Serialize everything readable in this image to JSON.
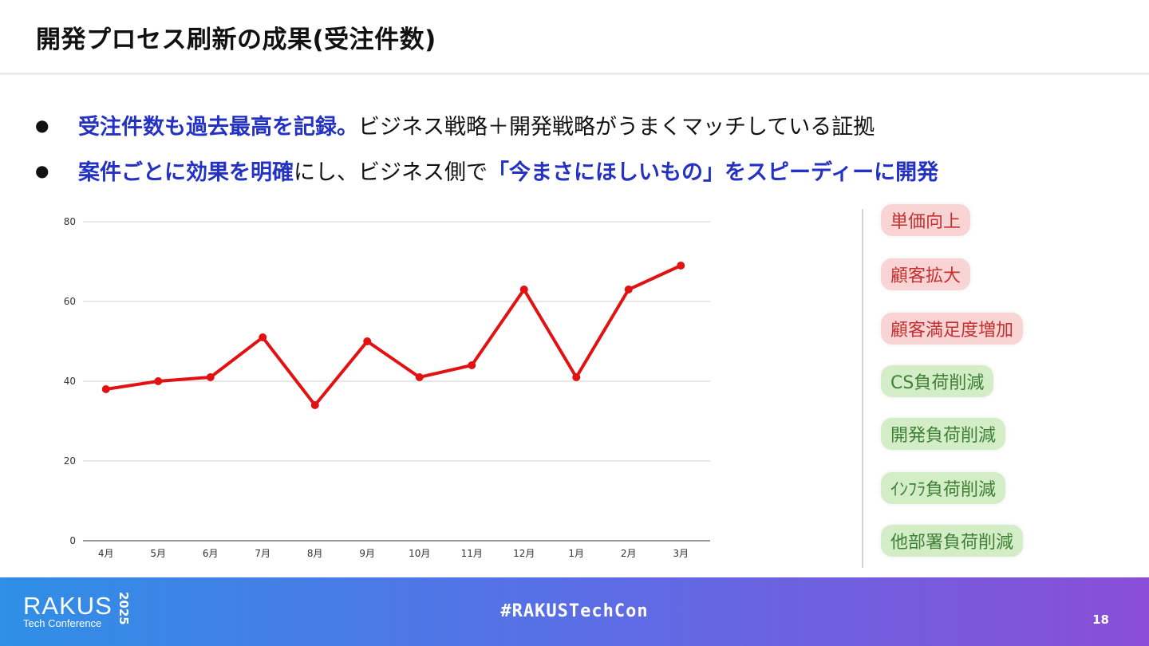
{
  "slide": {
    "title": "開発プロセス刷新の成果(受注件数)",
    "page_number": "18",
    "hashtag": "#RAKUSTechCon"
  },
  "bullets": [
    {
      "dot": "●",
      "highlight": "受注件数も過去最高を記録。",
      "text": "ビジネス戦略＋開発戦略がうまくマッチしている証拠"
    },
    {
      "dot": "●",
      "highlight": "案件ごとに効果を明確",
      "text": "にし、ビジネス側で",
      "highlight2": "「今まさにほしいもの」をスピーディーに開発"
    }
  ],
  "chart_data": {
    "type": "line",
    "categories": [
      "4月",
      "5月",
      "6月",
      "7月",
      "8月",
      "9月",
      "10月",
      "11月",
      "12月",
      "1月",
      "2月",
      "3月"
    ],
    "values": [
      38,
      40,
      41,
      51,
      34,
      50,
      41,
      44,
      63,
      41,
      63,
      69
    ],
    "yticks": [
      "0",
      "20",
      "40",
      "60",
      "80"
    ],
    "ylim": [
      0,
      80
    ],
    "grid": true,
    "color": "#e31212"
  },
  "tags": [
    {
      "label": "単価向上",
      "kind": "red"
    },
    {
      "label": "顧客拡大",
      "kind": "red"
    },
    {
      "label": "顧客満足度増加",
      "kind": "red"
    },
    {
      "label": "CS負荷削減",
      "kind": "green"
    },
    {
      "label": "開発負荷削減",
      "kind": "green"
    },
    {
      "label": "ｲﾝﾌﾗ負荷削減",
      "kind": "green"
    },
    {
      "label": "他部署負荷削減",
      "kind": "green"
    }
  ],
  "logo": {
    "main": "RAKUS",
    "year": "2025",
    "sub": "Tech Conference"
  }
}
